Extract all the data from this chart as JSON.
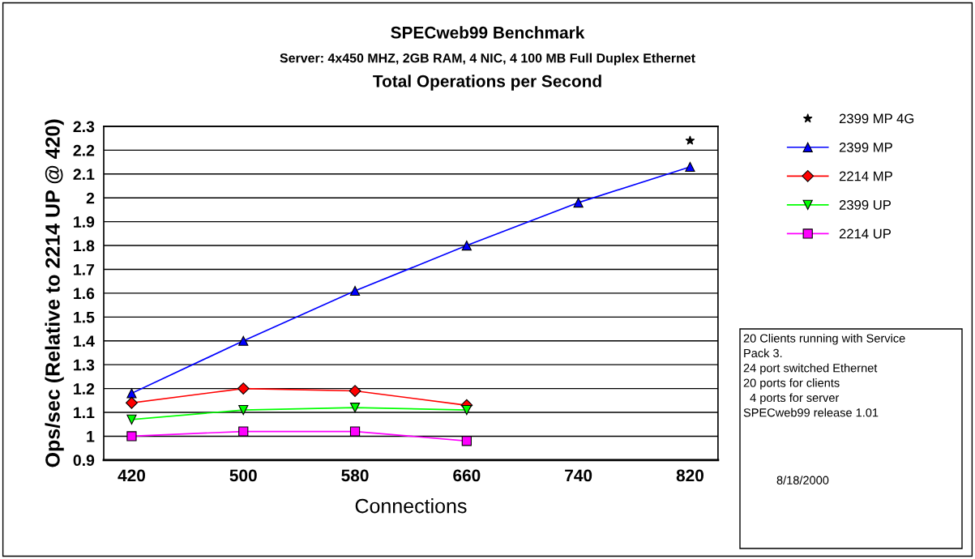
{
  "chart_data": {
    "type": "line",
    "title": "SPECweb99 Benchmark",
    "subtitle": "Server: 4x450 MHZ, 2GB RAM, 4 NIC, 4 100 MB Full Duplex Ethernet",
    "xlabel": "Connections",
    "ylabel": "Ops/sec (Relative to 2214 UP @ 420)",
    "categories": [
      "420",
      "500",
      "580",
      "660",
      "740",
      "820"
    ],
    "series": [
      {
        "name": "2399 MP 4G",
        "color": "#000000",
        "type": "scatter",
        "marker": "star",
        "values": [
          null,
          null,
          null,
          null,
          null,
          2.24
        ]
      },
      {
        "name": "2399 MP",
        "color": "#0000ff",
        "marker": "triangle",
        "values": [
          1.18,
          1.4,
          1.61,
          1.8,
          1.98,
          2.13
        ]
      },
      {
        "name": "2214 MP",
        "color": "#ff0000",
        "marker": "diamond",
        "values": [
          1.14,
          1.2,
          1.19,
          1.13,
          null,
          null
        ]
      },
      {
        "name": "2399 UP",
        "color": "#00ff00",
        "marker": "triangle_down",
        "values": [
          1.07,
          1.11,
          1.12,
          1.11,
          null,
          null
        ]
      },
      {
        "name": "2214 UP",
        "color": "#ff00ff",
        "marker": "square",
        "values": [
          1.0,
          1.02,
          1.02,
          0.98,
          null,
          null
        ]
      }
    ],
    "ylim": [
      0.9,
      2.3
    ],
    "yticks": [
      0.9,
      1,
      1.1,
      1.2,
      1.3,
      1.4,
      1.5,
      1.6,
      1.7,
      1.8,
      1.9,
      2,
      2.1,
      2.2,
      2.3
    ],
    "grid": "y",
    "legend": "right",
    "annotations": [
      "Total Operations per Second",
      "20 Clients running with Service\nPack 3.\n24 port switched Ethernet\n20 ports for clients\n  4 ports for server\nSPECweb99 release 1.01",
      "8/18/2000"
    ]
  }
}
